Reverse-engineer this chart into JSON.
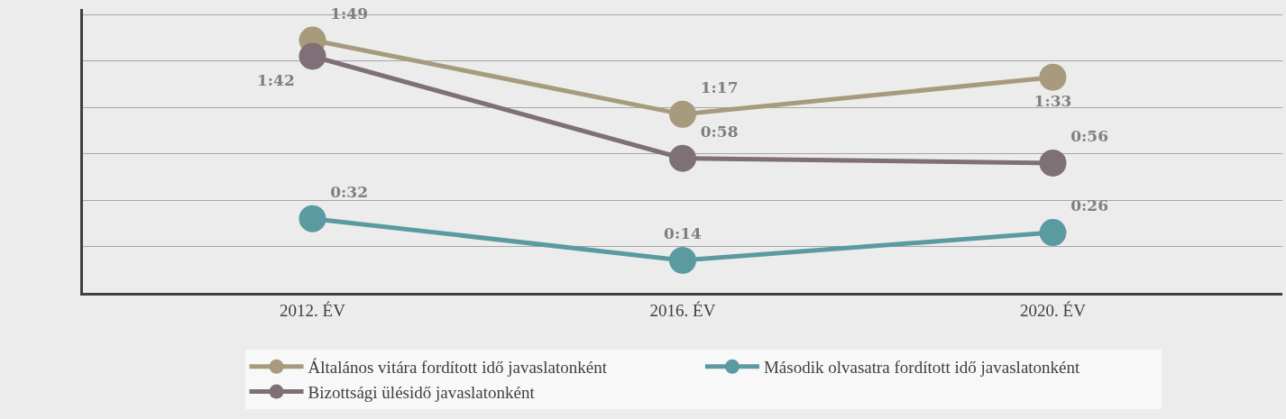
{
  "chart_data": {
    "type": "line",
    "categories": [
      "2012. ÉV",
      "2016. ÉV",
      "2020. ÉV"
    ],
    "series": [
      {
        "name": "Általános vitára fordított idő javaslatonként",
        "color": "#a89a7c",
        "values": [
          109,
          77,
          93
        ],
        "value_labels": [
          "1:49",
          "1:17",
          "1:33"
        ]
      },
      {
        "name": "Második olvasatra fordított idő javaslatonként",
        "color": "#5b9aa0",
        "values": [
          32,
          14,
          26
        ],
        "value_labels": [
          "0:32",
          "0:14",
          "0:26"
        ]
      },
      {
        "name": "Bizottsági ülésidő javaslatonként",
        "color": "#7f6f76",
        "values": [
          102,
          58,
          56
        ],
        "value_labels": [
          "1:42",
          "0:58",
          "0:56"
        ]
      }
    ],
    "relative": false,
    "tick_labels": "x",
    "grid": "y",
    "legend": "bottom",
    "marker": "circle",
    "line_style": "solid"
  }
}
